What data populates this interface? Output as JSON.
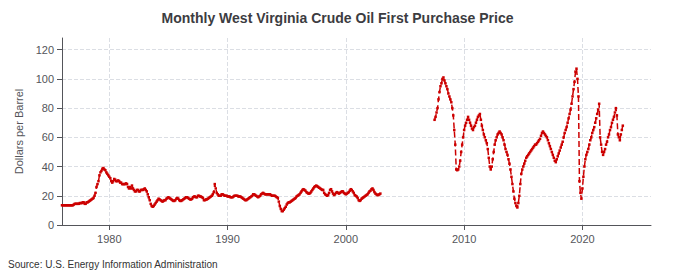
{
  "chart_data": {
    "type": "line",
    "title": "Monthly West Virginia Crude Oil First Purchase Price",
    "ylabel": "Dollars per Barrel",
    "source": "Source: U.S. Energy Information Administration",
    "xlim": [
      1976.0,
      2025.8
    ],
    "ylim": [
      0,
      128
    ],
    "xticks": [
      1980,
      1990,
      2000,
      2010,
      2020
    ],
    "yticks": [
      0,
      20,
      40,
      60,
      80,
      100,
      120
    ],
    "grid": true,
    "series": [
      {
        "color": "#cc0000",
        "line_style": "dashed",
        "marker": "square",
        "x": [
          1976,
          1976.0833,
          1976.1667,
          1976.25,
          1976.3333,
          1976.4167,
          1976.5,
          1976.5833,
          1976.6667,
          1976.75,
          1976.8333,
          1976.9167,
          1977,
          1977.0833,
          1977.1667,
          1977.25,
          1977.3333,
          1977.4167,
          1977.5,
          1977.5833,
          1977.6667,
          1977.75,
          1977.8333,
          1977.9167,
          1978,
          1978.0833,
          1978.1667,
          1978.25,
          1978.3333,
          1978.4167,
          1978.5,
          1978.5833,
          1978.6667,
          1978.75,
          1978.8333,
          1978.9167,
          1979,
          1979.0833,
          1979.1667,
          1979.25,
          1979.3333,
          1979.4167,
          1979.5,
          1979.5833,
          1979.6667,
          1979.75,
          1979.8333,
          1979.9167,
          1980,
          1980.0833,
          1980.1667,
          1980.25,
          1980.3333,
          1980.4167,
          1980.5,
          1980.5833,
          1980.6667,
          1980.75,
          1980.8333,
          1980.9167,
          1981,
          1981.0833,
          1981.1667,
          1981.25,
          1981.3333,
          1981.4167,
          1981.5,
          1981.5833,
          1981.6667,
          1981.75,
          1981.8333,
          1981.9167,
          1982,
          1982.0833,
          1982.1667,
          1982.25,
          1982.3333,
          1982.4167,
          1982.5,
          1982.5833,
          1982.6667,
          1982.75,
          1982.8333,
          1982.9167,
          1983,
          1983.0833,
          1983.1667,
          1983.25,
          1983.3333,
          1983.4167,
          1983.5,
          1983.5833,
          1983.6667,
          1983.75,
          1983.8333,
          1983.9167,
          1984,
          1984.0833,
          1984.1667,
          1984.25,
          1984.3333,
          1984.4167,
          1984.5,
          1984.5833,
          1984.6667,
          1984.75,
          1984.8333,
          1984.9167,
          1985,
          1985.0833,
          1985.1667,
          1985.25,
          1985.3333,
          1985.4167,
          1985.5,
          1985.5833,
          1985.6667,
          1985.75,
          1985.8333,
          1985.9167,
          1986,
          1986.0833,
          1986.1667,
          1986.25,
          1986.3333,
          1986.4167,
          1986.5,
          1986.5833,
          1986.6667,
          1986.75,
          1986.8333,
          1986.9167,
          1987,
          1987.0833,
          1987.1667,
          1987.25,
          1987.3333,
          1987.4167,
          1987.5,
          1987.5833,
          1987.6667,
          1987.75,
          1987.8333,
          1987.9167,
          1988,
          1988.0833,
          1988.1667,
          1988.25,
          1988.3333,
          1988.4167,
          1988.5,
          1988.5833,
          1988.6667,
          1988.75,
          1988.8333,
          1988.9167,
          1989,
          1989.0833,
          1989.1667,
          1989.25,
          1989.3333,
          1989.4167,
          1989.5,
          1989.5833,
          1989.6667,
          1989.75,
          1989.8333,
          1989.9167,
          1990,
          1990.0833,
          1990.1667,
          1990.25,
          1990.3333,
          1990.4167,
          1990.5,
          1990.5833,
          1990.6667,
          1990.75,
          1990.8333,
          1990.9167,
          1991,
          1991.0833,
          1991.1667,
          1991.25,
          1991.3333,
          1991.4167,
          1991.5,
          1991.5833,
          1991.6667,
          1991.75,
          1991.8333,
          1991.9167,
          1992,
          1992.0833,
          1992.1667,
          1992.25,
          1992.3333,
          1992.4167,
          1992.5,
          1992.5833,
          1992.6667,
          1992.75,
          1992.8333,
          1992.9167,
          1993,
          1993.0833,
          1993.1667,
          1993.25,
          1993.3333,
          1993.4167,
          1993.5,
          1993.5833,
          1993.6667,
          1993.75,
          1993.8333,
          1993.9167,
          1994,
          1994.0833,
          1994.1667,
          1994.25,
          1994.3333,
          1994.4167,
          1994.5,
          1994.5833,
          1994.6667,
          1994.75,
          1994.8333,
          1994.9167,
          1995,
          1995.0833,
          1995.1667,
          1995.25,
          1995.3333,
          1995.4167,
          1995.5,
          1995.5833,
          1995.6667,
          1995.75,
          1995.8333,
          1995.9167,
          1996,
          1996.0833,
          1996.1667,
          1996.25,
          1996.3333,
          1996.4167,
          1996.5,
          1996.5833,
          1996.6667,
          1996.75,
          1996.8333,
          1996.9167,
          1997,
          1997.0833,
          1997.1667,
          1997.25,
          1997.3333,
          1997.4167,
          1997.5,
          1997.5833,
          1997.6667,
          1997.75,
          1997.8333,
          1997.9167,
          1998,
          1998.0833,
          1998.1667,
          1998.25,
          1998.3333,
          1998.4167,
          1998.5,
          1998.5833,
          1998.6667,
          1998.75,
          1998.8333,
          1998.9167,
          1999,
          1999.0833,
          1999.1667,
          1999.25,
          1999.3333,
          1999.4167,
          1999.5,
          1999.5833,
          1999.6667,
          1999.75,
          1999.8333,
          1999.9167,
          2000,
          2000.0833,
          2000.1667,
          2000.25,
          2000.3333,
          2000.4167,
          2000.5,
          2000.5833,
          2000.6667,
          2000.75,
          2000.8333,
          2000.9167,
          2001,
          2001.0833,
          2001.1667,
          2001.25,
          2001.3333,
          2001.4167,
          2001.5,
          2001.5833,
          2001.6667,
          2001.75,
          2001.8333,
          2001.9167,
          2002,
          2002.0833,
          2002.1667,
          2002.25,
          2002.3333,
          2002.4167,
          2002.5,
          2002.5833,
          2002.6667,
          2002.75,
          2002.8333,
          2002.9167
        ],
        "values": [
          13.5,
          13.5,
          13.5,
          13.5,
          13.5,
          13.5,
          13.5,
          13.5,
          13.5,
          13.5,
          13.5,
          13.5,
          14.0,
          14.5,
          14.5,
          14.5,
          14.5,
          14.5,
          15.0,
          15.0,
          15.0,
          15.5,
          15.5,
          14.5,
          14.5,
          15.5,
          15.5,
          16.0,
          16.5,
          17.0,
          17.5,
          18.0,
          18.5,
          20.0,
          22.0,
          26.0,
          28.0,
          30.0,
          34.0,
          36.0,
          37.0,
          38.5,
          39.0,
          38.0,
          37.5,
          36.0,
          35.0,
          34.0,
          33.0,
          32.0,
          30.0,
          29.0,
          30.0,
          31.5,
          31.0,
          30.0,
          30.0,
          30.5,
          30.0,
          29.0,
          29.0,
          28.0,
          28.0,
          28.0,
          28.0,
          28.5,
          28.0,
          26.0,
          25.0,
          26.0,
          25.0,
          27.0,
          25.0,
          24.0,
          23.0,
          23.0,
          24.0,
          24.0,
          23.0,
          23.0,
          24.0,
          24.0,
          24.0,
          24.5,
          25.0,
          24.0,
          23.0,
          21.0,
          19.0,
          17.0,
          14.5,
          13.0,
          12.5,
          13.0,
          14.0,
          15.0,
          16.0,
          17.0,
          18.0,
          17.5,
          17.0,
          16.5,
          16.0,
          16.5,
          17.0,
          17.0,
          18.0,
          18.5,
          19.0,
          18.5,
          18.0,
          17.5,
          17.0,
          16.5,
          16.5,
          17.0,
          18.0,
          18.5,
          18.0,
          17.0,
          16.5,
          16.5,
          17.0,
          17.5,
          18.0,
          18.5,
          19.0,
          19.0,
          18.5,
          18.0,
          17.5,
          17.5,
          18.0,
          19.0,
          19.5,
          19.5,
          19.0,
          19.0,
          20.0,
          20.0,
          19.5,
          19.5,
          19.0,
          18.5,
          17.0,
          17.0,
          17.5,
          17.5,
          18.0,
          18.5,
          19.0,
          19.5,
          20.0,
          21.0,
          22.5,
          28.0,
          25.0,
          22.0,
          21.0,
          20.0,
          20.0,
          20.0,
          21.0,
          21.0,
          20.5,
          20.0,
          20.0,
          20.0,
          19.5,
          19.5,
          19.5,
          19.0,
          19.0,
          19.0,
          19.5,
          20.0,
          20.0,
          20.0,
          20.0,
          19.5,
          19.5,
          19.5,
          19.0,
          18.5,
          18.0,
          17.5,
          17.0,
          17.0,
          17.5,
          18.0,
          18.5,
          19.0,
          19.5,
          20.0,
          21.0,
          21.0,
          20.5,
          20.0,
          19.5,
          19.0,
          19.5,
          20.0,
          21.0,
          21.5,
          22.0,
          21.5,
          21.0,
          21.0,
          21.0,
          21.0,
          21.0,
          21.0,
          20.5,
          20.0,
          20.0,
          20.0,
          20.0,
          19.5,
          19.0,
          18.5,
          16.0,
          13.0,
          11.0,
          9.5,
          9.5,
          10.5,
          11.5,
          12.5,
          14.0,
          15.0,
          15.5,
          15.5,
          16.0,
          16.5,
          17.0,
          17.5,
          18.0,
          18.5,
          19.5,
          20.0,
          20.5,
          21.0,
          22.0,
          23.0,
          24.0,
          24.5,
          24.0,
          23.5,
          22.5,
          22.0,
          21.5,
          21.5,
          22.0,
          23.0,
          24.0,
          25.0,
          26.0,
          26.5,
          27.0,
          26.5,
          26.0,
          25.5,
          25.0,
          24.5,
          24.0,
          24.0,
          22.0,
          21.0,
          20.5,
          20.0,
          20.5,
          22.0,
          24.0,
          24.5,
          23.0,
          21.5,
          20.5,
          21.0,
          22.0,
          22.5,
          22.0,
          21.5,
          22.0,
          22.5,
          23.0,
          23.0,
          22.0,
          21.5,
          21.0,
          21.5,
          22.0,
          22.5,
          23.5,
          24.5,
          24.0,
          23.0,
          22.0,
          20.5,
          20.0,
          19.5,
          18.5,
          17.0,
          16.5,
          17.0,
          18.0,
          18.5,
          19.0,
          19.5,
          20.0,
          20.5,
          21.0,
          22.0,
          23.0,
          23.5,
          24.5,
          25.0,
          24.0,
          22.5,
          21.5,
          21.0,
          20.5,
          20.5,
          21.0,
          21.5
        ]
      },
      {
        "color": "#cc0000",
        "line_style": "dashed",
        "marker": "square",
        "x": [
          2007.5,
          2007.5833,
          2007.6667,
          2007.75,
          2007.8333,
          2007.9167,
          2008,
          2008.0833,
          2008.1667,
          2008.25,
          2008.3333,
          2008.4167,
          2008.5,
          2008.5833,
          2008.6667,
          2008.75,
          2008.8333,
          2008.9167,
          2009,
          2009.0833,
          2009.1667,
          2009.25,
          2009.3333,
          2009.4167,
          2009.5,
          2009.5833,
          2009.6667,
          2009.75,
          2009.8333,
          2009.9167,
          2010,
          2010.0833,
          2010.1667,
          2010.25,
          2010.3333,
          2010.4167,
          2010.5,
          2010.5833,
          2010.6667,
          2010.75,
          2010.8333,
          2010.9167,
          2011,
          2011.0833,
          2011.1667,
          2011.25,
          2011.3333,
          2011.4167,
          2011.5,
          2011.5833,
          2011.6667,
          2011.75,
          2011.8333,
          2011.9167,
          2012,
          2012.0833,
          2012.1667,
          2012.25,
          2012.3333,
          2012.4167,
          2012.5,
          2012.5833,
          2012.6667,
          2012.75,
          2012.8333,
          2012.9167,
          2013,
          2013.0833,
          2013.1667,
          2013.25,
          2013.3333,
          2013.4167,
          2013.5,
          2013.5833,
          2013.6667,
          2013.75,
          2013.8333,
          2013.9167,
          2014,
          2014.0833,
          2014.1667,
          2014.25,
          2014.3333,
          2014.4167,
          2014.5,
          2014.5833,
          2014.6667,
          2014.75,
          2014.8333,
          2014.9167,
          2015,
          2015.0833,
          2015.1667,
          2015.25,
          2015.3333,
          2015.4167,
          2015.5,
          2015.5833,
          2015.6667,
          2015.75,
          2015.8333,
          2015.9167,
          2016,
          2016.0833,
          2016.1667,
          2016.25,
          2016.3333,
          2016.4167,
          2016.5,
          2016.5833,
          2016.6667,
          2016.75,
          2016.8333,
          2016.9167,
          2017,
          2017.0833,
          2017.1667,
          2017.25,
          2017.3333,
          2017.4167,
          2017.5,
          2017.5833,
          2017.6667,
          2017.75,
          2017.8333,
          2017.9167,
          2018,
          2018.0833,
          2018.1667,
          2018.25,
          2018.3333,
          2018.4167,
          2018.5,
          2018.5833,
          2018.6667,
          2018.75,
          2018.8333,
          2018.9167,
          2019,
          2019.0833,
          2019.1667,
          2019.25,
          2019.3333,
          2019.4167,
          2019.5,
          2019.5833,
          2019.6667,
          2019.75,
          2019.8333,
          2019.9167,
          2020,
          2020.0833,
          2020.1667,
          2020.25,
          2020.3333,
          2020.4167,
          2020.5,
          2020.5833,
          2020.6667,
          2020.75,
          2020.8333,
          2020.9167,
          2021,
          2021.0833,
          2021.1667,
          2021.25,
          2021.3333,
          2021.4167,
          2021.5,
          2021.5833,
          2021.6667,
          2021.75,
          2021.8333,
          2021.9167,
          2022,
          2022.0833,
          2022.1667,
          2022.25,
          2022.3333,
          2022.4167,
          2022.5,
          2022.5833,
          2022.6667,
          2022.75,
          2022.8333,
          2022.9167,
          2023,
          2023.0833,
          2023.1667,
          2023.25,
          2023.3333,
          2023.4167
        ],
        "values": [
          72.0,
          74.0,
          77.0,
          80.0,
          86.0,
          91.0,
          95.0,
          97.0,
          100.0,
          101.0,
          99.0,
          97.0,
          95.0,
          93.0,
          90.0,
          88.0,
          86.0,
          84.0,
          80.0,
          75.0,
          65.0,
          55.0,
          38.0,
          37.5,
          38.0,
          40.0,
          44.0,
          50.0,
          55.0,
          60.0,
          65.0,
          68.0,
          70.0,
          72.0,
          74.0,
          72.0,
          70.0,
          68.0,
          66.0,
          65.0,
          67.0,
          68.0,
          70.0,
          72.0,
          74.0,
          75.0,
          76.0,
          72.0,
          68.0,
          65.0,
          62.0,
          60.0,
          58.0,
          56.0,
          52.0,
          46.0,
          40.0,
          38.0,
          40.0,
          45.0,
          50.0,
          55.0,
          58.0,
          60.0,
          62.0,
          63.0,
          64.0,
          63.0,
          62.0,
          60.0,
          58.0,
          55.0,
          52.0,
          50.0,
          48.0,
          45.0,
          42.0,
          38.0,
          33.0,
          28.0,
          23.0,
          18.0,
          15.0,
          13.0,
          12.0,
          15.0,
          20.0,
          28.0,
          35.0,
          38.0,
          40.0,
          42.0,
          44.0,
          46.0,
          47.0,
          48.0,
          49.0,
          50.0,
          51.0,
          52.0,
          53.0,
          54.0,
          55.0,
          55.0,
          56.0,
          57.0,
          58.0,
          59.0,
          61.0,
          63.0,
          64.0,
          63.0,
          62.0,
          61.0,
          60.0,
          58.0,
          56.0,
          54.0,
          52.0,
          50.0,
          48.0,
          46.0,
          44.0,
          43.0,
          45.0,
          47.0,
          49.0,
          51.0,
          53.0,
          55.0,
          57.0,
          60.0,
          63.0,
          65.0,
          67.0,
          70.0,
          73.0,
          76.0,
          79.0,
          83.0,
          88.0,
          93.0,
          98.0,
          105.0,
          107.0,
          100.0,
          88.0,
          30.0,
          22.0,
          18.0,
          25.0,
          33.0,
          40.0,
          45.0,
          48.0,
          50.0,
          52.0,
          55.0,
          58.0,
          60.0,
          63.0,
          65.0,
          67.0,
          70.0,
          73.0,
          76.0,
          79.0,
          83.0,
          60.0,
          55.0,
          50.0,
          48.0,
          50.0,
          52.0,
          55.0,
          57.0,
          60.0,
          62.0,
          65.0,
          67.0,
          70.0,
          72.0,
          74.0,
          77.0,
          80.0,
          75.0,
          62.0,
          60.0,
          58.0,
          62.0,
          65.0,
          68.0
        ]
      }
    ]
  }
}
